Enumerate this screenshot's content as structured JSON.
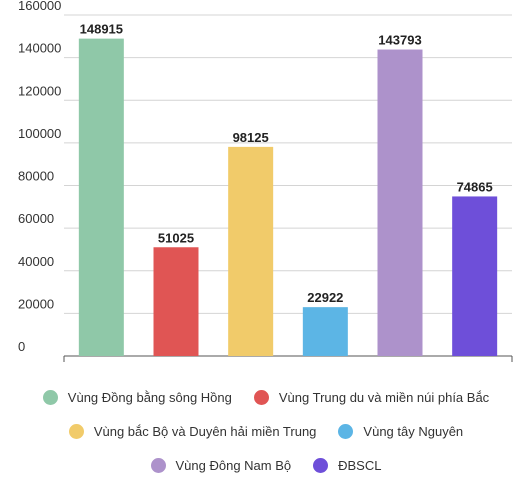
{
  "chart_data": {
    "type": "bar",
    "categories": [
      "Vùng Đồng bằng sông Hồng",
      "Vùng Trung du và miền núi phía Bắc",
      "Vùng bắc Bộ và Duyên hải miền Trung",
      "Vùng tây Nguyên",
      "Vùng Đông Nam Bộ",
      "ĐBSCL"
    ],
    "values": [
      148915,
      51025,
      98125,
      22922,
      143793,
      74865
    ],
    "colors": [
      "#8fc8a8",
      "#e05554",
      "#f1cb6a",
      "#5cb5e5",
      "#ad92cb",
      "#6e4fd9"
    ],
    "yticks": [
      "0",
      "20000",
      "40000",
      "60000",
      "80000",
      "100000",
      "120000",
      "140000",
      "160000"
    ],
    "ylim": [
      0,
      160000
    ],
    "grid": true,
    "legend_position": "bottom",
    "title": "",
    "xlabel": "",
    "ylabel": ""
  }
}
